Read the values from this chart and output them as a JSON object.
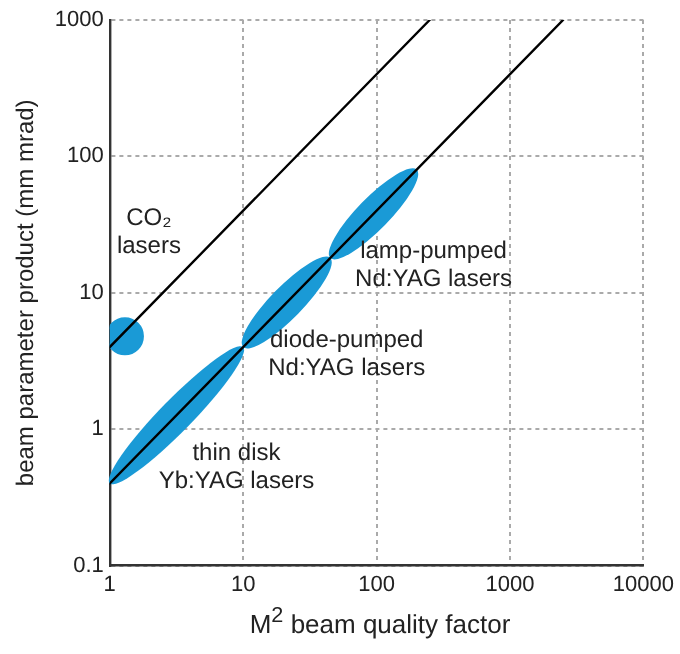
{
  "chart_data": {
    "type": "line",
    "xlabel": "M$^{2}$ beam quality factor",
    "ylabel": "beam parameter product (mm mrad)",
    "log": "xy",
    "grid": true,
    "line_style": "solid",
    "xlim": [
      1,
      10000
    ],
    "xticks": [
      1,
      10,
      100,
      1000,
      10000
    ],
    "ylim": [
      0.1,
      1000
    ],
    "yticks": [
      0.1,
      1,
      10,
      100,
      1000
    ],
    "series": [
      {
        "name": "thin disk Yb:YAG lasers",
        "type": "area",
        "color": "#1a9ad6",
        "x": [
          1,
          10
        ],
        "values": [
          0.4,
          4
        ]
      },
      {
        "name": "diode-pumped Nd:YAG lasers",
        "type": "area",
        "color": "#1a9ad6",
        "x": [
          10,
          45
        ],
        "values": [
          4,
          18
        ]
      },
      {
        "name": "lamp-pumped Nd:YAG lasers",
        "type": "area",
        "color": "#1a9ad6",
        "x": [
          45,
          200
        ],
        "values": [
          18,
          80
        ]
      },
      {
        "name": "CO₂ lasers",
        "type": "scatter",
        "color": "#1a9ad6",
        "x": [
          1.3
        ],
        "values": [
          4.8
        ]
      },
      {
        "color": "#000000",
        "x": [
          1,
          250
        ],
        "values": [
          4,
          1000
        ]
      },
      {
        "color": "#000000",
        "x": [
          1,
          2500
        ],
        "values": [
          0.4,
          1000
        ]
      }
    ]
  }
}
